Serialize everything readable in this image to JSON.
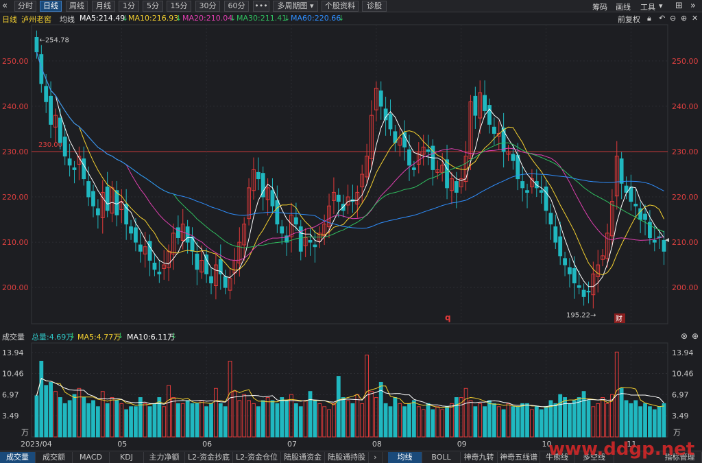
{
  "toolbar": {
    "back_icon": "double-chevron-left-icon",
    "intervals": [
      "分时",
      "日线",
      "周线",
      "月线",
      "1分",
      "5分",
      "15分",
      "30分",
      "60分"
    ],
    "active_interval": "日线",
    "more_label": "•••",
    "multi_period_label": "多周期图",
    "stock_info_label": "个股资料",
    "diagnose_label": "诊股",
    "chips_label": "筹码",
    "draw_label": "画线",
    "tools_label": "工具"
  },
  "ma_header": {
    "period": "日线",
    "stock_name": "泸州老窖",
    "type_label": "均线",
    "ma5": "MA5:214.49",
    "ma10": "MA10:216.93",
    "ma20": "MA20:210.04",
    "ma30": "MA30:211.41",
    "ma60": "MA60:220.66",
    "adjust_label": "前复权",
    "colors": {
      "ma5": "#ffffff",
      "ma10": "#f5d130",
      "ma20": "#e040b0",
      "ma30": "#30c060",
      "ma60": "#2f8fff"
    }
  },
  "price_axis": {
    "labels": [
      "250.00",
      "240.00",
      "230.00",
      "220.00",
      "210.00",
      "200.00"
    ],
    "ref_line_label": "230.00",
    "high_label": "254.78",
    "low_label": "195.22",
    "q_marker": "q",
    "cai_marker": "财"
  },
  "volume_header": {
    "title": "成交量",
    "total": "总量:4.69万",
    "ma5": "MA5:4.77万",
    "ma10": "MA10:6.11万",
    "axis_labels": [
      "13.94",
      "10.46",
      "6.97",
      "3.49",
      "万"
    ]
  },
  "x_axis": {
    "labels": [
      "2023/04",
      "05",
      "06",
      "07",
      "08",
      "09",
      "10",
      "11"
    ]
  },
  "bottom_tabs_left": [
    "成交量",
    "成交额",
    "MACD",
    "KDJ",
    "主力净额",
    "L2-资金抄底",
    "L2-资金仓位",
    "陆股通资金",
    "陆股通持股"
  ],
  "bottom_tabs_right": [
    "均线",
    "BOLL",
    "神奇九转",
    "神奇五线谱",
    "牛熊线",
    "多空线",
    "指标管理"
  ],
  "watermark": "www.ddgp.net",
  "chart_data": {
    "type": "candlestick",
    "title": "泸州老窖 日线",
    "ylim": [
      192,
      258
    ],
    "dates_months": [
      "2023/04",
      "05",
      "06",
      "07",
      "08",
      "09",
      "10",
      "11"
    ],
    "reference_line": 230.0,
    "high": 254.78,
    "low": 195.22,
    "close_series": [
      252,
      245,
      241,
      236,
      238,
      232,
      229,
      227,
      226,
      229,
      224,
      220,
      218,
      216,
      221,
      217,
      222,
      216,
      219,
      214,
      212,
      210,
      208,
      209,
      206,
      204,
      203,
      205,
      208,
      212,
      211,
      214,
      210,
      208,
      204,
      206,
      203,
      201,
      205,
      203,
      200,
      202,
      206,
      210,
      214,
      222,
      226,
      224,
      220,
      222,
      218,
      214,
      212,
      210,
      216,
      214,
      208,
      211,
      210,
      209,
      212,
      214,
      218,
      221,
      219,
      217,
      220,
      219,
      221,
      225,
      229,
      238,
      244,
      240,
      237,
      235,
      232,
      233,
      231,
      227,
      226,
      230,
      231,
      230,
      226,
      226,
      227,
      222,
      224,
      221,
      224,
      229,
      241,
      238,
      243,
      239,
      236,
      234,
      234,
      230,
      230,
      228,
      224,
      222,
      221,
      224,
      222,
      221,
      217,
      214,
      210,
      207,
      205,
      203,
      201,
      200,
      198,
      199,
      203,
      205,
      207,
      212,
      219,
      229,
      223,
      221,
      219,
      218,
      215,
      215,
      211,
      210,
      211,
      208
    ],
    "volume_series": [
      6.8,
      12.5,
      8.5,
      9.0,
      7.5,
      6.5,
      5.5,
      6.0,
      7.0,
      8.0,
      6.5,
      5.5,
      6.0,
      5.0,
      7.5,
      5.5,
      6.5,
      6.0,
      5.5,
      4.5,
      5.0,
      5.0,
      6.5,
      5.5,
      5.0,
      5.5,
      6.5,
      5.0,
      8.5,
      6.5,
      5.5,
      5.5,
      6.0,
      5.5,
      5.5,
      6.0,
      5.0,
      5.5,
      8.0,
      5.5,
      5.0,
      12.5,
      7.5,
      6.0,
      7.0,
      6.0,
      5.5,
      5.0,
      6.0,
      6.5,
      6.0,
      5.5,
      6.5,
      6.0,
      7.0,
      5.5,
      5.0,
      6.0,
      7.5,
      6.0,
      5.5,
      5.0,
      4.5,
      5.5,
      10.0,
      6.5,
      6.0,
      5.5,
      7.0,
      5.5,
      13.5,
      7.5,
      6.5,
      9.0,
      5.5,
      5.0,
      6.5,
      5.5,
      5.0,
      5.5,
      6.0,
      5.0,
      4.5,
      5.5,
      4.5,
      5.0,
      4.5,
      5.0,
      5.5,
      6.5,
      6.5,
      8.0,
      6.0,
      5.0,
      5.5,
      5.0,
      6.0,
      5.5,
      5.0,
      4.5,
      5.5,
      5.0,
      5.0,
      5.5,
      5.5,
      4.5,
      5.0,
      4.5,
      5.0,
      6.0,
      5.5,
      7.0,
      6.5,
      5.5,
      6.0,
      6.5,
      7.5,
      6.0,
      5.0,
      5.5,
      6.5,
      5.5,
      7.0,
      14.0,
      8.0,
      6.0,
      5.5,
      6.0,
      5.0,
      5.5,
      5.0,
      4.5,
      5.0,
      5.5
    ],
    "ma_lines": [
      {
        "name": "MA5",
        "color": "#ffffff"
      },
      {
        "name": "MA10",
        "color": "#f5d130"
      },
      {
        "name": "MA20",
        "color": "#e040b0"
      },
      {
        "name": "MA30",
        "color": "#30c060"
      },
      {
        "name": "MA60",
        "color": "#2f8fff"
      }
    ],
    "volume_ylim": [
      0,
      15.5
    ],
    "volume_axis_ticks": [
      13.94,
      10.46,
      6.97,
      3.49
    ]
  }
}
